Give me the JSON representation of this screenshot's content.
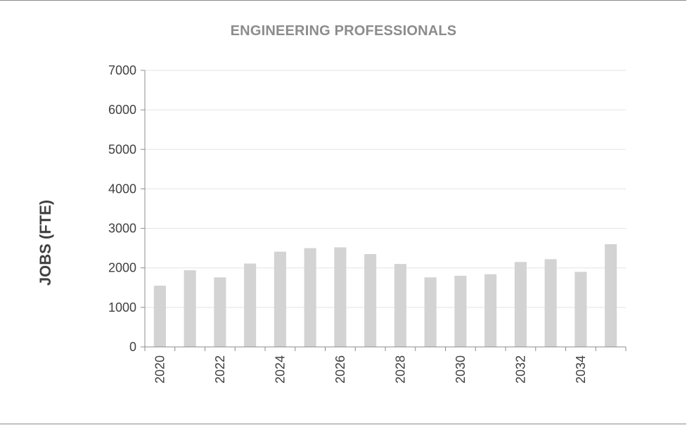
{
  "chart_data": {
    "type": "bar",
    "title": "ENGINEERING PROFESSIONALS",
    "xlabel": "",
    "ylabel": "JOBS (FTE)",
    "categories": [
      "2020",
      "2021",
      "2022",
      "2023",
      "2024",
      "2025",
      "2026",
      "2027",
      "2028",
      "2029",
      "2030",
      "2031",
      "2032",
      "2033",
      "2034",
      "2035"
    ],
    "x_tick_labels": [
      "2020",
      "",
      "2022",
      "",
      "2024",
      "",
      "2026",
      "",
      "2028",
      "",
      "2030",
      "",
      "2032",
      "",
      "2034",
      ""
    ],
    "series": [
      {
        "values": [
          1550,
          1940,
          1760,
          2110,
          2410,
          2500,
          2520,
          2350,
          2100,
          1760,
          1800,
          1840,
          2150,
          2220,
          1900,
          2600
        ]
      }
    ],
    "ylim": [
      0,
      7000
    ],
    "yticks": [
      0,
      1000,
      2000,
      3000,
      4000,
      5000,
      6000,
      7000
    ],
    "grid": true,
    "legend": "none",
    "colors": {
      "bar": "#d3d3d3",
      "grid": "#e3e3e3",
      "axis": "#8c8c8c",
      "title": "#8c8c8c",
      "text": "#404040"
    }
  }
}
